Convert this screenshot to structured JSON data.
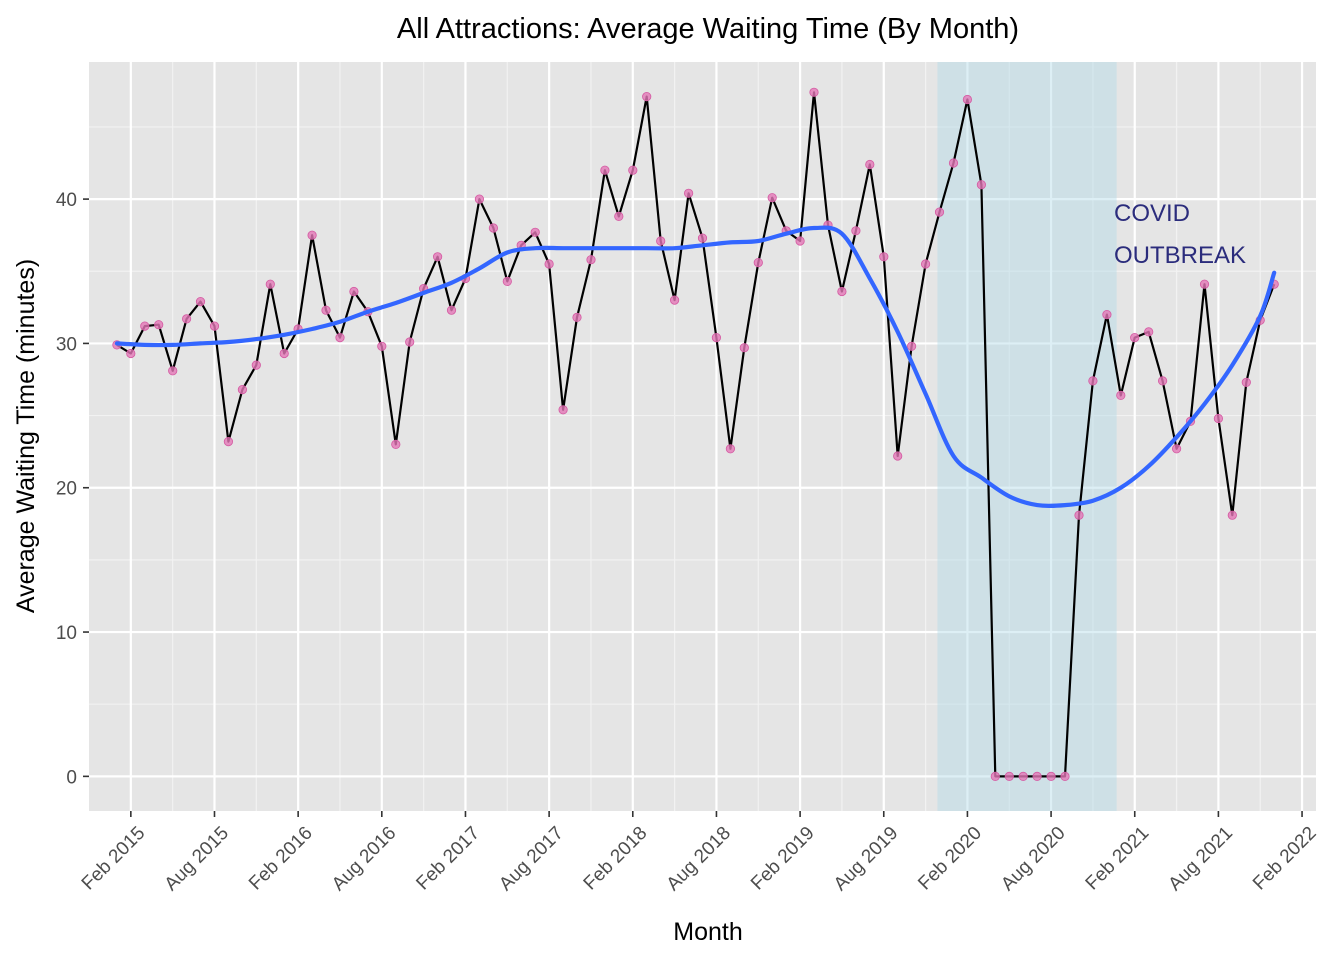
{
  "chart_data": {
    "type": "line",
    "title": "All Attractions: Average Waiting Time (By Month)",
    "xlabel": "Month",
    "ylabel": "Average Waiting Time (minutes)",
    "x_ticks": [
      "Feb 2015",
      "Aug 2015",
      "Feb 2016",
      "Aug 2016",
      "Feb 2017",
      "Aug 2017",
      "Feb 2018",
      "Aug 2018",
      "Feb 2019",
      "Aug 2019",
      "Feb 2020",
      "Aug 2020",
      "Feb 2021",
      "Aug 2021",
      "Feb 2022"
    ],
    "y_ticks": [
      0,
      10,
      20,
      30,
      40
    ],
    "xlim": [
      "2014-11",
      "2022-03"
    ],
    "ylim": [
      -2.4,
      49.5
    ],
    "grid": true,
    "background_color": "#e5e5e5",
    "annotation": {
      "lines": [
        "COVID",
        "OUTBREAK"
      ],
      "color": "#2b2c7c",
      "shaded_range": [
        "2019-12",
        "2020-12"
      ],
      "shade_color": "#add8e6"
    },
    "series": [
      {
        "type": "line+points",
        "color": "#000000",
        "point_color": "#e377b6",
        "x": [
          "2015-01",
          "2015-02",
          "2015-03",
          "2015-04",
          "2015-05",
          "2015-06",
          "2015-07",
          "2015-08",
          "2015-09",
          "2015-10",
          "2015-11",
          "2015-12",
          "2016-01",
          "2016-02",
          "2016-03",
          "2016-04",
          "2016-05",
          "2016-06",
          "2016-07",
          "2016-08",
          "2016-09",
          "2016-10",
          "2016-11",
          "2016-12",
          "2017-01",
          "2017-02",
          "2017-03",
          "2017-04",
          "2017-05",
          "2017-06",
          "2017-07",
          "2017-08",
          "2017-09",
          "2017-10",
          "2017-11",
          "2017-12",
          "2018-01",
          "2018-02",
          "2018-03",
          "2018-04",
          "2018-05",
          "2018-06",
          "2018-07",
          "2018-08",
          "2018-09",
          "2018-10",
          "2018-11",
          "2018-12",
          "2019-01",
          "2019-02",
          "2019-03",
          "2019-04",
          "2019-05",
          "2019-06",
          "2019-07",
          "2019-08",
          "2019-09",
          "2019-10",
          "2019-11",
          "2019-12",
          "2020-01",
          "2020-02",
          "2020-03",
          "2020-04",
          "2020-05",
          "2020-06",
          "2020-07",
          "2020-08",
          "2020-09",
          "2020-10",
          "2020-11",
          "2020-12",
          "2021-01",
          "2021-02",
          "2021-03",
          "2021-04",
          "2021-05",
          "2021-06",
          "2021-07",
          "2021-08",
          "2021-09",
          "2021-10",
          "2021-11",
          "2021-12"
        ],
        "values": [
          29.9,
          29.3,
          31.2,
          31.3,
          28.1,
          31.7,
          32.9,
          31.2,
          23.2,
          26.8,
          28.5,
          34.1,
          29.3,
          31.0,
          37.5,
          32.3,
          30.4,
          33.6,
          32.2,
          29.8,
          23.0,
          30.1,
          33.8,
          36.0,
          32.3,
          34.5,
          40.0,
          38.0,
          34.3,
          36.8,
          37.7,
          35.5,
          25.4,
          31.8,
          35.8,
          42.0,
          38.8,
          42.0,
          47.1,
          37.1,
          33.0,
          40.4,
          37.3,
          30.4,
          22.7,
          29.7,
          35.6,
          40.1,
          37.8,
          37.1,
          47.4,
          38.2,
          33.6,
          37.8,
          42.4,
          36.0,
          22.2,
          29.8,
          35.5,
          39.1,
          42.5,
          46.9,
          41.0,
          0,
          0,
          0,
          0,
          0,
          0,
          18.1,
          27.4,
          32.0,
          26.4,
          30.4,
          30.8,
          27.4,
          22.7,
          24.6,
          34.1,
          24.8,
          18.1,
          27.3,
          31.6,
          34.1
        ]
      },
      {
        "type": "smooth",
        "color": "#3366ff",
        "x": [
          "2015-01",
          "2015-03",
          "2015-05",
          "2015-07",
          "2015-09",
          "2015-11",
          "2016-01",
          "2016-03",
          "2016-05",
          "2016-07",
          "2016-09",
          "2016-11",
          "2017-01",
          "2017-03",
          "2017-05",
          "2017-07",
          "2017-09",
          "2017-11",
          "2018-01",
          "2018-03",
          "2018-05",
          "2018-07",
          "2018-09",
          "2018-11",
          "2019-01",
          "2019-03",
          "2019-05",
          "2019-07",
          "2019-09",
          "2019-11",
          "2020-01",
          "2020-03",
          "2020-05",
          "2020-07",
          "2020-09",
          "2020-11",
          "2021-01",
          "2021-03",
          "2021-05",
          "2021-07",
          "2021-09",
          "2021-11",
          "2021-12"
        ],
        "values": [
          30.0,
          29.9,
          29.9,
          30.0,
          30.1,
          30.3,
          30.6,
          31.0,
          31.5,
          32.2,
          32.8,
          33.5,
          34.2,
          35.2,
          36.3,
          36.6,
          36.6,
          36.6,
          36.6,
          36.6,
          36.6,
          36.8,
          37.0,
          37.1,
          37.6,
          38.0,
          37.6,
          34.5,
          30.8,
          26.5,
          22.2,
          20.7,
          19.4,
          18.8,
          18.8,
          19.1,
          20.0,
          21.5,
          23.5,
          25.8,
          28.5,
          31.9,
          34.9
        ]
      }
    ]
  }
}
